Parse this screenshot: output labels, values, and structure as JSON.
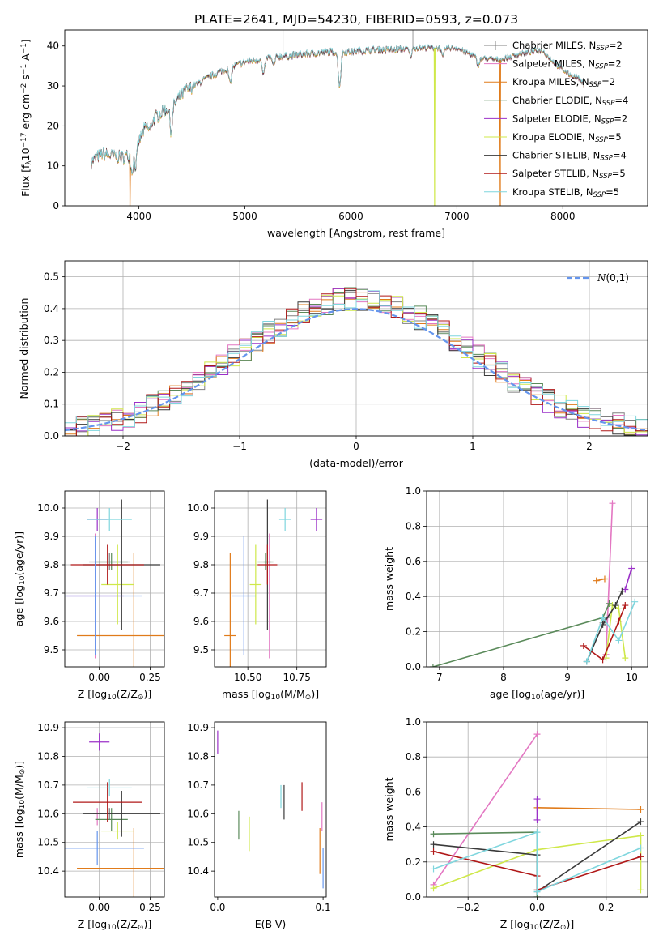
{
  "figure_title": "PLATE=2641, MJD=54230, FIBERID=0593, z=0.073",
  "colors": {
    "Chabrier MILES": "#808080",
    "Salpeter MILES": "#e377c2",
    "Kroupa MILES": "#e07b1a",
    "Chabrier ELODIE": "#5a8a5a",
    "Salpeter ELODIE": "#9b30c8",
    "Kroupa ELODIE": "#cfe84a",
    "Chabrier STELIB": "#3a3a3a",
    "Salpeter STELIB": "#b01818",
    "Kroupa STELIB": "#7fd6de",
    "normal": "#6495ed"
  },
  "chart_data": [
    {
      "id": "spectrum",
      "type": "line",
      "xlabel": "wavelength [Angstrom, rest frame]",
      "ylabel": "Flux [f_λ10^-17 erg cm^-2 s^-1 A^-1]",
      "xlim": [
        3300,
        8800
      ],
      "ylim": [
        0,
        44
      ],
      "xticks": [
        4000,
        5000,
        6000,
        7000,
        8000
      ],
      "yticks": [
        0,
        10,
        20,
        30,
        40
      ],
      "grid": false,
      "legend_position": "top-right",
      "legend": [
        {
          "name": "Chabrier MILES",
          "label": "Chabrier MILES, N",
          "sub": "SSP",
          "n": "=2"
        },
        {
          "name": "Salpeter MILES",
          "label": "Salpeter MILES, N",
          "sub": "SSP",
          "n": "=2"
        },
        {
          "name": "Kroupa MILES",
          "label": "Kroupa MILES, N",
          "sub": "SSP",
          "n": "=2"
        },
        {
          "name": "Chabrier ELODIE",
          "label": "Chabrier ELODIE, N",
          "sub": "SSP",
          "n": "=4"
        },
        {
          "name": "Salpeter ELODIE",
          "label": "Salpeter ELODIE, N",
          "sub": "SSP",
          "n": "=2"
        },
        {
          "name": "Kroupa ELODIE",
          "label": "Kroupa ELODIE, N",
          "sub": "SSP",
          "n": "=5"
        },
        {
          "name": "Chabrier STELIB",
          "label": "Chabrier STELIB, N",
          "sub": "SSP",
          "n": "=4"
        },
        {
          "name": "Salpeter STELIB",
          "label": "Salpeter STELIB, N",
          "sub": "SSP",
          "n": "=5"
        },
        {
          "name": "Kroupa STELIB",
          "label": "Kroupa STELIB, N",
          "sub": "SSP",
          "n": "=5"
        }
      ],
      "continuum": [
        [
          3550,
          11
        ],
        [
          3650,
          13
        ],
        [
          3750,
          12.5
        ],
        [
          3850,
          12
        ],
        [
          3950,
          13.5
        ],
        [
          4050,
          19
        ],
        [
          4150,
          22
        ],
        [
          4250,
          24
        ],
        [
          4350,
          26
        ],
        [
          4450,
          29
        ],
        [
          4550,
          30.5
        ],
        [
          4650,
          32
        ],
        [
          4800,
          34
        ],
        [
          5000,
          36
        ],
        [
          5200,
          37
        ],
        [
          5400,
          37.5
        ],
        [
          5600,
          38
        ],
        [
          5800,
          38.5
        ],
        [
          6000,
          38.5
        ],
        [
          6200,
          39
        ],
        [
          6400,
          39
        ],
        [
          6600,
          39.5
        ],
        [
          6800,
          39.5
        ],
        [
          7000,
          39.5
        ],
        [
          7200,
          37
        ],
        [
          7400,
          36.5
        ],
        [
          7600,
          38
        ],
        [
          7800,
          39
        ],
        [
          7950,
          35
        ],
        [
          8050,
          33
        ],
        [
          8150,
          32
        ],
        [
          8200,
          30
        ]
      ],
      "absorption_lines": [
        [
          3934,
          0.35
        ],
        [
          3969,
          0.3
        ],
        [
          4102,
          0.08
        ],
        [
          4304,
          0.25
        ],
        [
          4861,
          0.12
        ],
        [
          5175,
          0.12
        ],
        [
          5270,
          0.06
        ],
        [
          5893,
          0.22
        ],
        [
          6563,
          0.05
        ],
        [
          6867,
          0.06
        ],
        [
          7200,
          0.05
        ]
      ],
      "dropouts": [
        {
          "series": "Kroupa MILES",
          "x": 3915
        },
        {
          "series": "Kroupa ELODIE",
          "x": 6790
        },
        {
          "series": "Kroupa MILES",
          "x": 7410
        }
      ],
      "spikes": [
        {
          "series": "Chabrier MILES",
          "x": 5360,
          "y": 44
        },
        {
          "series": "Chabrier MILES",
          "x": 6585,
          "y": 44
        }
      ]
    },
    {
      "id": "residuals",
      "type": "histogram",
      "xlabel": "(data-model)/error",
      "ylabel": "Normed distribution",
      "xlim": [
        -2.5,
        2.5
      ],
      "ylim": [
        0,
        0.55
      ],
      "xticks": [
        -2,
        -1,
        0,
        1,
        2
      ],
      "yticks": [
        0.0,
        0.1,
        0.2,
        0.3,
        0.4,
        0.5
      ],
      "grid": true,
      "legend_position": "top-right",
      "normal_label": "N(0,1)",
      "bin_width": 0.1
    },
    {
      "id": "age_vs_Z",
      "type": "errorbar",
      "xlabel": "Z [log10(Z/Z⊙)]",
      "ylabel": "age [log10(age/yr)]",
      "xlim": [
        -0.17,
        0.32
      ],
      "ylim": [
        9.44,
        10.06
      ],
      "xticks": [
        0.0,
        0.25
      ],
      "yticks": [
        9.5,
        9.6,
        9.7,
        9.8,
        9.9,
        10.0
      ],
      "grid": true,
      "points": [
        {
          "series": "Chabrier MILES",
          "x": 0.05,
          "y": 9.81,
          "xerr": 0.1,
          "yerr": 0.03
        },
        {
          "series": "Salpeter MILES",
          "x": -0.02,
          "y": 9.69,
          "xerr": 0.14,
          "yerr": 0.22
        },
        {
          "series": "Kroupa MILES",
          "x": 0.17,
          "y": 9.55,
          "xerr": 0.28,
          "yerr": 0.29
        },
        {
          "series": "Chabrier ELODIE",
          "x": 0.06,
          "y": 9.81,
          "xerr": 0.08,
          "yerr": 0.03
        },
        {
          "series": "Salpeter ELODIE",
          "x": -0.01,
          "y": 9.96,
          "xerr": 0.05,
          "yerr": 0.04
        },
        {
          "series": "Kroupa ELODIE",
          "x": 0.09,
          "y": 9.73,
          "xerr": 0.08,
          "yerr": 0.14
        },
        {
          "series": "Chabrier STELIB",
          "x": 0.11,
          "y": 9.8,
          "xerr": 0.19,
          "yerr": 0.23
        },
        {
          "series": "Salpeter STELIB",
          "x": 0.04,
          "y": 9.8,
          "xerr": 0.18,
          "yerr": 0.07
        },
        {
          "series": "Kroupa STELIB",
          "x": 0.05,
          "y": 9.96,
          "xerr": 0.11,
          "yerr": 0.04
        },
        {
          "series": "normal",
          "x": -0.02,
          "y": 9.69,
          "xerr": 0.23,
          "yerr": 0.21
        }
      ]
    },
    {
      "id": "age_vs_mass",
      "type": "errorbar",
      "xlabel": "mass [log10(M/M⊙)]",
      "ylabel": "",
      "xlim": [
        10.33,
        10.9
      ],
      "ylim": [
        9.44,
        10.06
      ],
      "xticks": [
        10.5,
        10.75
      ],
      "yticks": [
        9.5,
        9.6,
        9.7,
        9.8,
        9.9,
        10.0
      ],
      "grid": true,
      "points": [
        {
          "series": "Chabrier MILES",
          "x": 10.6,
          "y": 9.81,
          "xerr": 0.02,
          "yerr": 0.03
        },
        {
          "series": "Salpeter MILES",
          "x": 10.61,
          "y": 9.69,
          "xerr": 0.0,
          "yerr": 0.22
        },
        {
          "series": "Kroupa MILES",
          "x": 10.41,
          "y": 9.55,
          "xerr": 0.03,
          "yerr": 0.29
        },
        {
          "series": "Chabrier ELODIE",
          "x": 10.59,
          "y": 9.81,
          "xerr": 0.04,
          "yerr": 0.03
        },
        {
          "series": "Salpeter ELODIE",
          "x": 10.85,
          "y": 9.96,
          "xerr": 0.03,
          "yerr": 0.04
        },
        {
          "series": "Kroupa ELODIE",
          "x": 10.54,
          "y": 9.73,
          "xerr": 0.03,
          "yerr": 0.14
        },
        {
          "series": "Chabrier STELIB",
          "x": 10.6,
          "y": 9.8,
          "xerr": 0.0,
          "yerr": 0.23
        },
        {
          "series": "Salpeter STELIB",
          "x": 10.6,
          "y": 9.8,
          "xerr": 0.05,
          "yerr": 0.07
        },
        {
          "series": "Kroupa STELIB",
          "x": 10.69,
          "y": 9.96,
          "xerr": 0.03,
          "yerr": 0.04
        },
        {
          "series": "normal",
          "x": 10.48,
          "y": 9.69,
          "xerr": 0.06,
          "yerr": 0.21
        }
      ]
    },
    {
      "id": "weight_vs_age",
      "type": "line",
      "xlabel": "age [log10(age/yr)]",
      "ylabel": "mass weight",
      "xlim": [
        6.8,
        10.25
      ],
      "ylim": [
        0,
        1
      ],
      "xticks": [
        7,
        8,
        9,
        10
      ],
      "yticks": [
        0.0,
        0.2,
        0.4,
        0.6,
        0.8,
        1.0
      ],
      "grid": true,
      "series": [
        {
          "name": "Chabrier MILES",
          "points": [
            [
              9.55,
              0.25
            ],
            [
              9.6,
              0.28
            ]
          ]
        },
        {
          "name": "Salpeter MILES",
          "points": [
            [
              9.6,
              0.07
            ],
            [
              9.7,
              0.93
            ]
          ]
        },
        {
          "name": "Kroupa MILES",
          "points": [
            [
              9.45,
              0.49
            ],
            [
              9.58,
              0.5
            ]
          ]
        },
        {
          "name": "Chabrier ELODIE",
          "points": [
            [
              6.9,
              0.0
            ],
            [
              9.55,
              0.28
            ],
            [
              9.65,
              0.36
            ]
          ]
        },
        {
          "name": "Salpeter ELODIE",
          "points": [
            [
              9.9,
              0.44
            ],
            [
              10.0,
              0.56
            ]
          ]
        },
        {
          "name": "Kroupa ELODIE",
          "points": [
            [
              9.6,
              0.05
            ],
            [
              9.7,
              0.35
            ],
            [
              9.8,
              0.33
            ],
            [
              9.9,
              0.05
            ]
          ]
        },
        {
          "name": "Chabrier STELIB",
          "points": [
            [
              9.3,
              0.03
            ],
            [
              9.55,
              0.24
            ],
            [
              9.75,
              0.35
            ],
            [
              9.85,
              0.43
            ]
          ]
        },
        {
          "name": "Salpeter STELIB",
          "points": [
            [
              9.25,
              0.12
            ],
            [
              9.55,
              0.04
            ],
            [
              9.8,
              0.26
            ],
            [
              9.9,
              0.35
            ]
          ]
        },
        {
          "name": "Kroupa STELIB",
          "points": [
            [
              9.3,
              0.03
            ],
            [
              9.55,
              0.28
            ],
            [
              9.8,
              0.15
            ],
            [
              10.05,
              0.37
            ]
          ]
        }
      ]
    },
    {
      "id": "mass_vs_Z",
      "type": "errorbar",
      "xlabel": "Z [log10(Z/Z⊙)]",
      "ylabel": "mass [log10(M/M⊙)]",
      "xlim": [
        -0.17,
        0.32
      ],
      "ylim": [
        10.31,
        10.92
      ],
      "xticks": [
        0.0,
        0.25
      ],
      "yticks": [
        10.4,
        10.5,
        10.6,
        10.7,
        10.8,
        10.9
      ],
      "grid": true,
      "points": [
        {
          "series": "Chabrier MILES",
          "x": 0.05,
          "y": 10.6,
          "xerr": 0.08,
          "yerr": 0.02
        },
        {
          "series": "Salpeter MILES",
          "x": -0.01,
          "y": 10.59,
          "xerr": 0.0,
          "yerr": 0.03
        },
        {
          "series": "Kroupa MILES",
          "x": 0.17,
          "y": 10.41,
          "xerr": 0.28,
          "yerr": 0.14
        },
        {
          "series": "Chabrier ELODIE",
          "x": 0.06,
          "y": 10.58,
          "xerr": 0.08,
          "yerr": 0.04
        },
        {
          "series": "Salpeter ELODIE",
          "x": 0.0,
          "y": 10.85,
          "xerr": 0.05,
          "yerr": 0.03
        },
        {
          "series": "Kroupa ELODIE",
          "x": 0.09,
          "y": 10.54,
          "xerr": 0.08,
          "yerr": 0.03
        },
        {
          "series": "Chabrier STELIB",
          "x": 0.11,
          "y": 10.6,
          "xerr": 0.19,
          "yerr": 0.08
        },
        {
          "series": "Salpeter STELIB",
          "x": 0.04,
          "y": 10.64,
          "xerr": 0.17,
          "yerr": 0.07
        },
        {
          "series": "Kroupa STELIB",
          "x": 0.05,
          "y": 10.69,
          "xerr": 0.11,
          "yerr": 0.03
        },
        {
          "series": "normal",
          "x": -0.01,
          "y": 10.48,
          "xerr": 0.23,
          "yerr": 0.06
        }
      ]
    },
    {
      "id": "mass_vs_ebv",
      "type": "errorbar",
      "xlabel": "E(B-V)",
      "ylabel": "",
      "xlim": [
        -0.003,
        0.103
      ],
      "ylim": [
        10.31,
        10.92
      ],
      "xticks": [
        0.0,
        0.1
      ],
      "yticks": [
        10.4,
        10.5,
        10.6,
        10.7,
        10.8,
        10.9
      ],
      "grid": false,
      "points": [
        {
          "series": "Salpeter ELODIE",
          "x": 0.0,
          "y": 10.85,
          "xerr": 0,
          "yerr": 0.04
        },
        {
          "series": "Chabrier ELODIE",
          "x": 0.02,
          "y": 10.56,
          "xerr": 0,
          "yerr": 0.05
        },
        {
          "series": "Kroupa ELODIE",
          "x": 0.03,
          "y": 10.53,
          "xerr": 0,
          "yerr": 0.06
        },
        {
          "series": "Kroupa STELIB",
          "x": 0.06,
          "y": 10.66,
          "xerr": 0,
          "yerr": 0.04
        },
        {
          "series": "Chabrier STELIB",
          "x": 0.063,
          "y": 10.64,
          "xerr": 0,
          "yerr": 0.06
        },
        {
          "series": "Salpeter STELIB",
          "x": 0.08,
          "y": 10.66,
          "xerr": 0,
          "yerr": 0.05
        },
        {
          "series": "Kroupa MILES",
          "x": 0.097,
          "y": 10.47,
          "xerr": 0,
          "yerr": 0.08
        },
        {
          "series": "Salpeter MILES",
          "x": 0.099,
          "y": 10.59,
          "xerr": 0,
          "yerr": 0.05
        },
        {
          "series": "normal",
          "x": 0.1,
          "y": 10.41,
          "xerr": 0,
          "yerr": 0.07
        }
      ]
    },
    {
      "id": "weight_vs_Z",
      "type": "line",
      "xlabel": "Z [log10(Z/Z⊙)]",
      "ylabel": "mass weight",
      "xlim": [
        -0.32,
        0.32
      ],
      "ylim": [
        0,
        1
      ],
      "xticks": [
        -0.2,
        0.0,
        0.2
      ],
      "yticks": [
        0.0,
        0.2,
        0.4,
        0.6,
        0.8,
        1.0
      ],
      "grid": true,
      "series": [
        {
          "name": "Salpeter MILES",
          "points": [
            [
              -0.3,
              0.07
            ],
            [
              0.0,
              0.93
            ]
          ]
        },
        {
          "name": "Kroupa MILES",
          "points": [
            [
              0.0,
              0.51
            ],
            [
              0.3,
              0.5
            ]
          ]
        },
        {
          "name": "Chabrier ELODIE",
          "points": [
            [
              -0.3,
              0.36
            ],
            [
              0.0,
              0.37
            ],
            [
              0.0,
              0.0
            ]
          ]
        },
        {
          "name": "Salpeter ELODIE",
          "points": [
            [
              0.0,
              0.44
            ],
            [
              0.0,
              0.56
            ]
          ]
        },
        {
          "name": "Kroupa ELODIE",
          "points": [
            [
              -0.3,
              0.05
            ],
            [
              0.0,
              0.27
            ],
            [
              0.3,
              0.35
            ],
            [
              0.3,
              0.04
            ]
          ]
        },
        {
          "name": "Chabrier STELIB",
          "points": [
            [
              -0.3,
              0.3
            ],
            [
              0.0,
              0.24
            ],
            [
              0.0,
              0.03
            ],
            [
              0.3,
              0.43
            ]
          ]
        },
        {
          "name": "Salpeter STELIB",
          "points": [
            [
              -0.3,
              0.26
            ],
            [
              0.0,
              0.12
            ],
            [
              0.0,
              0.04
            ],
            [
              0.3,
              0.23
            ]
          ]
        },
        {
          "name": "Kroupa STELIB",
          "points": [
            [
              -0.3,
              0.16
            ],
            [
              0.0,
              0.37
            ],
            [
              0.0,
              0.03
            ],
            [
              0.3,
              0.28
            ]
          ]
        }
      ]
    }
  ]
}
